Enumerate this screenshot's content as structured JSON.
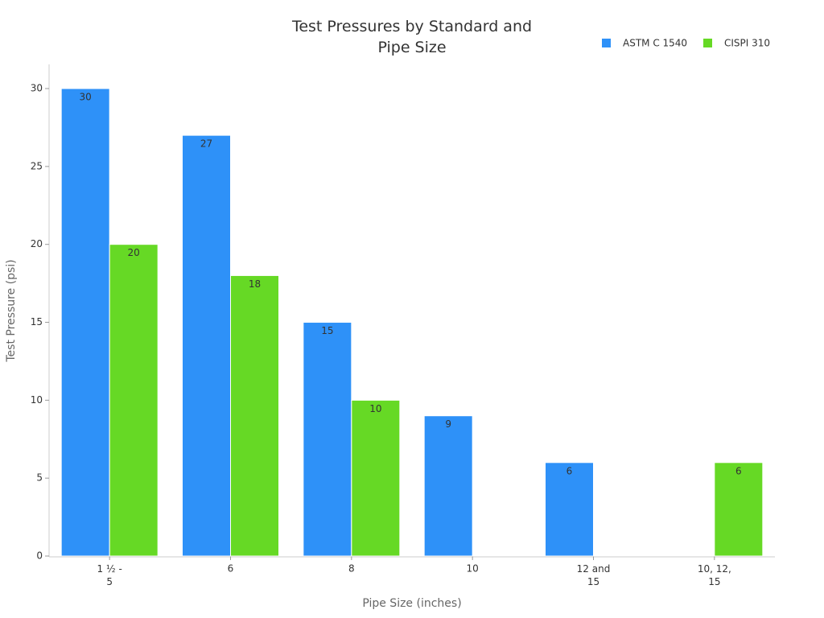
{
  "chart_data": {
    "type": "bar",
    "title": "Test Pressures by Standard and Pipe Size",
    "x_label": "Pipe Size (inches)",
    "y_label": "Test Pressure (psi)",
    "categories": [
      "1 ½ - 5",
      "6",
      "8",
      "10",
      "12 and 15",
      "10, 12, 15"
    ],
    "series": [
      {
        "name": "ASTM C 1540",
        "color": "#2e91f8",
        "values": [
          30,
          27,
          15,
          9,
          6,
          null
        ]
      },
      {
        "name": "CISPI 310",
        "color": "#66d925",
        "values": [
          20,
          18,
          10,
          null,
          null,
          6
        ]
      }
    ],
    "ylim": [
      0,
      31.5
    ],
    "yticks": [
      0,
      5,
      10,
      15,
      20,
      25,
      30
    ],
    "legend": "top-right"
  }
}
